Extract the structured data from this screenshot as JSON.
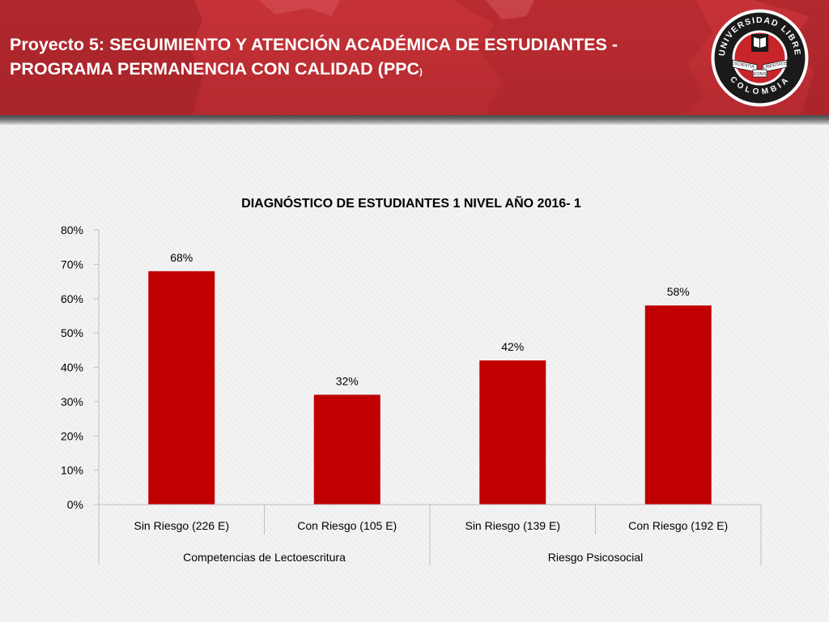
{
  "header": {
    "title_line1": "Proyecto 5: SEGUIMIENTO Y ATENCIÓN ACADÉMICA DE ESTUDIANTES -",
    "title_line2": "PROGRAMA PERMANENCIA CON CALIDAD (PPC",
    "title_suffix": ")",
    "logo": {
      "top_text": "UNIVERSIDAD LIBRE",
      "bottom_text": "COLOMBIA",
      "ribbon_left": "SCIENTIA",
      "ribbon_center": "FONS",
      "ribbon_right": "LIBERTATIS",
      "icon": "university-seal-icon"
    }
  },
  "colors": {
    "header_red": "#c63237",
    "bar_red": "#c00000",
    "axis_gray": "#bfbfbf"
  },
  "chart_data": {
    "type": "bar",
    "title": "DIAGNÓSTICO DE ESTUDIANTES 1 NIVEL AÑO 2016- 1",
    "categories": [
      "Sin Riesgo (226 E)",
      "Con Riesgo  (105 E)",
      "Sin Riesgo  (139 E)",
      "Con Riesgo (192 E)"
    ],
    "groups": [
      {
        "label": "Competencias de Lectoescritura",
        "span": 2
      },
      {
        "label": "Riesgo Psicosocial",
        "span": 2
      }
    ],
    "values": [
      68,
      32,
      42,
      58
    ],
    "data_labels": [
      "68%",
      "32%",
      "42%",
      "58%"
    ],
    "y_ticks": [
      "0%",
      "10%",
      "20%",
      "30%",
      "40%",
      "50%",
      "60%",
      "70%",
      "80%"
    ],
    "ylim": [
      0,
      80
    ],
    "grid": false,
    "legend": "none"
  }
}
